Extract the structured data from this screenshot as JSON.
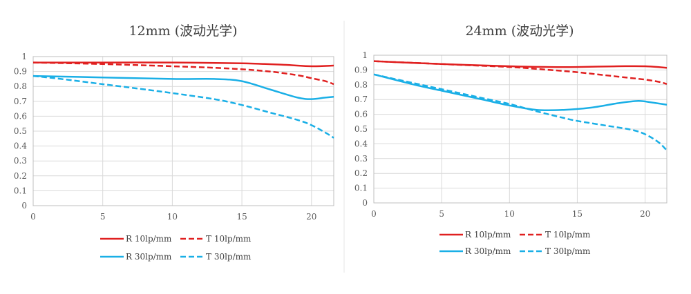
{
  "chart_data": [
    {
      "type": "line",
      "title": "12mm (波动光学)",
      "xlabel": "",
      "ylabel": "",
      "xlim": [
        0,
        21.6
      ],
      "ylim": [
        0,
        1
      ],
      "x_ticks": [
        "0",
        "5",
        "10",
        "15",
        "20"
      ],
      "y_ticks": [
        "0",
        "0.1",
        "0.2",
        "0.3",
        "0.4",
        "0.5",
        "0.6",
        "0.7",
        "0.8",
        "0.9",
        "1"
      ],
      "grid": true,
      "legend_position": "bottom",
      "series": [
        {
          "name": "R 10lp/mm",
          "color": "#e02020",
          "dash": "solid",
          "x": [
            0,
            5,
            10,
            15,
            18,
            20,
            21.6
          ],
          "y": [
            0.96,
            0.96,
            0.96,
            0.955,
            0.945,
            0.935,
            0.94
          ]
        },
        {
          "name": "T 10lp/mm",
          "color": "#e02020",
          "dash": "dashed",
          "x": [
            0,
            5,
            10,
            13,
            15,
            17,
            19,
            20,
            21,
            21.6
          ],
          "y": [
            0.96,
            0.95,
            0.935,
            0.925,
            0.915,
            0.9,
            0.875,
            0.855,
            0.835,
            0.815
          ]
        },
        {
          "name": "R 30lp/mm",
          "color": "#1aafe6",
          "dash": "solid",
          "x": [
            0,
            5,
            10,
            13,
            15,
            17,
            19,
            20,
            21,
            21.6
          ],
          "y": [
            0.87,
            0.86,
            0.85,
            0.85,
            0.835,
            0.78,
            0.725,
            0.715,
            0.725,
            0.73
          ]
        },
        {
          "name": "T 30lp/mm",
          "color": "#1aafe6",
          "dash": "dashed",
          "x": [
            0,
            2,
            5,
            8,
            10,
            13,
            15,
            17,
            19,
            20,
            21,
            21.6
          ],
          "y": [
            0.87,
            0.85,
            0.815,
            0.78,
            0.755,
            0.715,
            0.675,
            0.625,
            0.575,
            0.54,
            0.49,
            0.455
          ]
        }
      ]
    },
    {
      "type": "line",
      "title": "24mm (波动光学)",
      "xlabel": "",
      "ylabel": "",
      "xlim": [
        0,
        21.6
      ],
      "ylim": [
        0,
        1
      ],
      "x_ticks": [
        "0",
        "5",
        "10",
        "15",
        "20"
      ],
      "y_ticks": [
        "0",
        "0.1",
        "0.2",
        "0.3",
        "0.4",
        "0.5",
        "0.6",
        "0.7",
        "0.8",
        "0.9",
        "1"
      ],
      "grid": true,
      "legend_position": "bottom",
      "series": [
        {
          "name": "R 10lp/mm",
          "color": "#e02020",
          "dash": "solid",
          "x": [
            0,
            5,
            10,
            13,
            15,
            18,
            20,
            21.6
          ],
          "y": [
            0.96,
            0.94,
            0.925,
            0.92,
            0.92,
            0.925,
            0.925,
            0.915
          ]
        },
        {
          "name": "T 10lp/mm",
          "color": "#e02020",
          "dash": "dashed",
          "x": [
            0,
            5,
            10,
            13,
            15,
            17,
            19,
            20,
            21,
            21.6
          ],
          "y": [
            0.96,
            0.94,
            0.92,
            0.9,
            0.885,
            0.865,
            0.845,
            0.835,
            0.82,
            0.805
          ]
        },
        {
          "name": "R 30lp/mm",
          "color": "#1aafe6",
          "dash": "solid",
          "x": [
            0,
            3,
            5,
            8,
            10,
            12,
            14,
            16,
            18,
            19.5,
            20.5,
            21.6
          ],
          "y": [
            0.87,
            0.8,
            0.76,
            0.7,
            0.66,
            0.63,
            0.63,
            0.645,
            0.675,
            0.69,
            0.68,
            0.665
          ]
        },
        {
          "name": "T 30lp/mm",
          "color": "#1aafe6",
          "dash": "dashed",
          "x": [
            0,
            3,
            5,
            8,
            10,
            12,
            14,
            15,
            17,
            19,
            20,
            21,
            21.6
          ],
          "y": [
            0.87,
            0.81,
            0.77,
            0.71,
            0.67,
            0.62,
            0.575,
            0.555,
            0.525,
            0.495,
            0.465,
            0.41,
            0.355
          ]
        }
      ]
    }
  ]
}
